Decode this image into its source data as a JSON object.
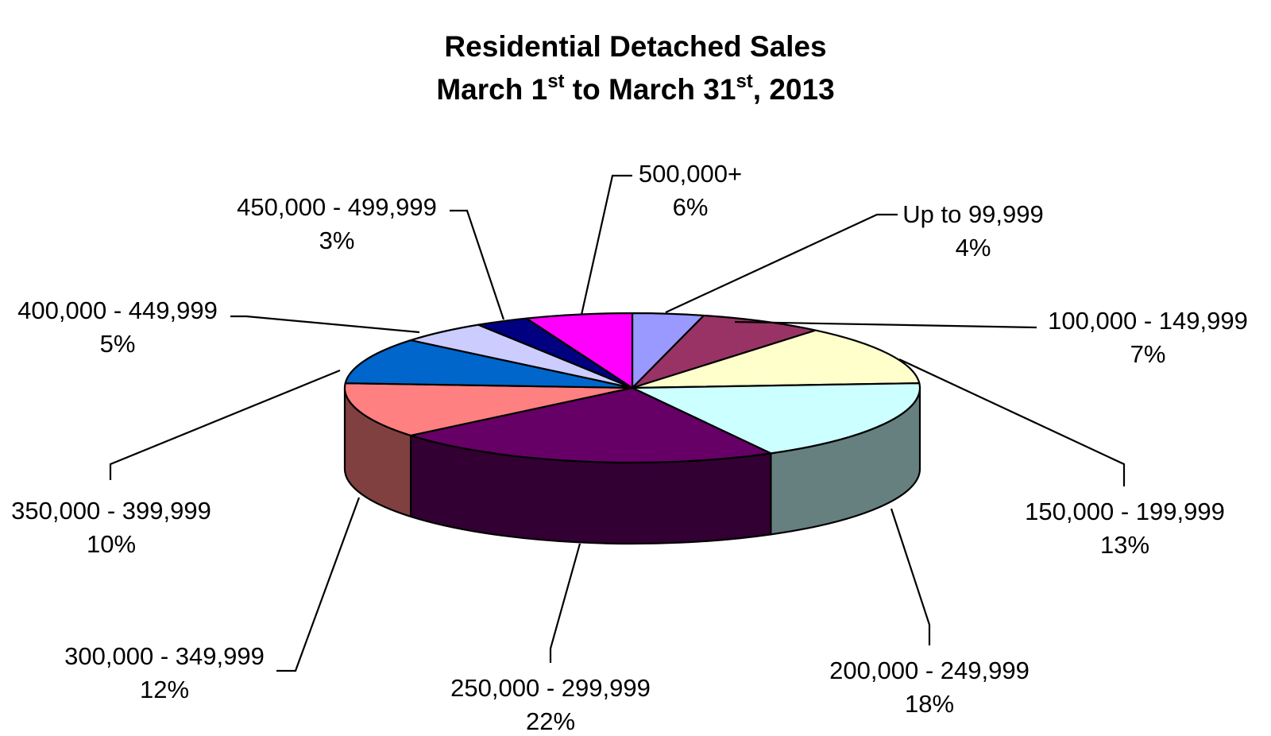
{
  "chart_data": {
    "type": "pie",
    "title_line1": "Residential Detached Sales",
    "title_line2": {
      "a": "March 1",
      "sup1": "st",
      "b": " to March 31",
      "sup2": "st",
      "c": ", 2013"
    },
    "slices": [
      {
        "label": "Up to 99,999",
        "percent": "4%",
        "value": 4,
        "color": "#9999ff"
      },
      {
        "label": "100,000 - 149,999",
        "percent": "7%",
        "value": 7,
        "color": "#993366"
      },
      {
        "label": "150,000 - 199,999",
        "percent": "13%",
        "value": 13,
        "color": "#ffffcc"
      },
      {
        "label": "200,000 - 249,999",
        "percent": "18%",
        "value": 18,
        "color": "#ccffff"
      },
      {
        "label": "250,000 - 299,999",
        "percent": "22%",
        "value": 22,
        "color": "#660066"
      },
      {
        "label": "300,000 - 349,999",
        "percent": "12%",
        "value": 12,
        "color": "#ff8080"
      },
      {
        "label": "350,000 - 399,999",
        "percent": "10%",
        "value": 10,
        "color": "#0066cc"
      },
      {
        "label": "400,000 - 449,999",
        "percent": "5%",
        "value": 5,
        "color": "#ccccff"
      },
      {
        "label": "450,000 - 499,999",
        "percent": "3%",
        "value": 3,
        "color": "#000080"
      },
      {
        "label": "500,000+",
        "percent": "6%",
        "value": 6,
        "color": "#ff00ff"
      }
    ],
    "legend": "none"
  }
}
